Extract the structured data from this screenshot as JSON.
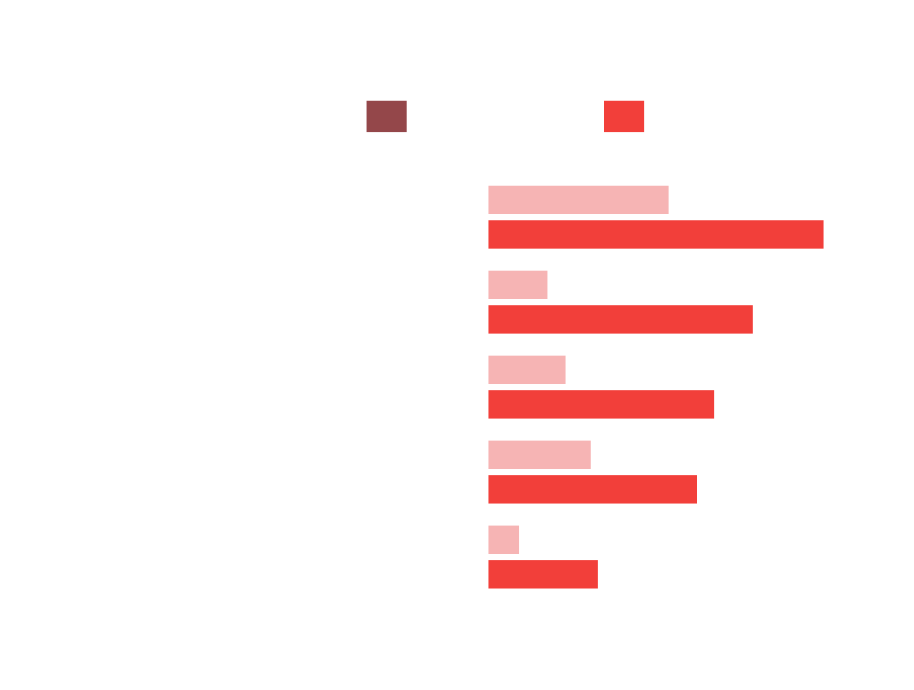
{
  "chart_data": {
    "type": "barh",
    "categories": [
      null,
      null,
      null,
      null,
      null
    ],
    "series": [
      {
        "color": "#f6b4b4",
        "swatch_color": "#94474a",
        "values": [
          229,
          75,
          98,
          130,
          39
        ]
      },
      {
        "color": "#f23f3a",
        "swatch_color": "#f23f3a",
        "values": [
          426,
          336,
          287,
          265,
          139
        ]
      }
    ],
    "xlim": [
      0,
      426
    ]
  }
}
